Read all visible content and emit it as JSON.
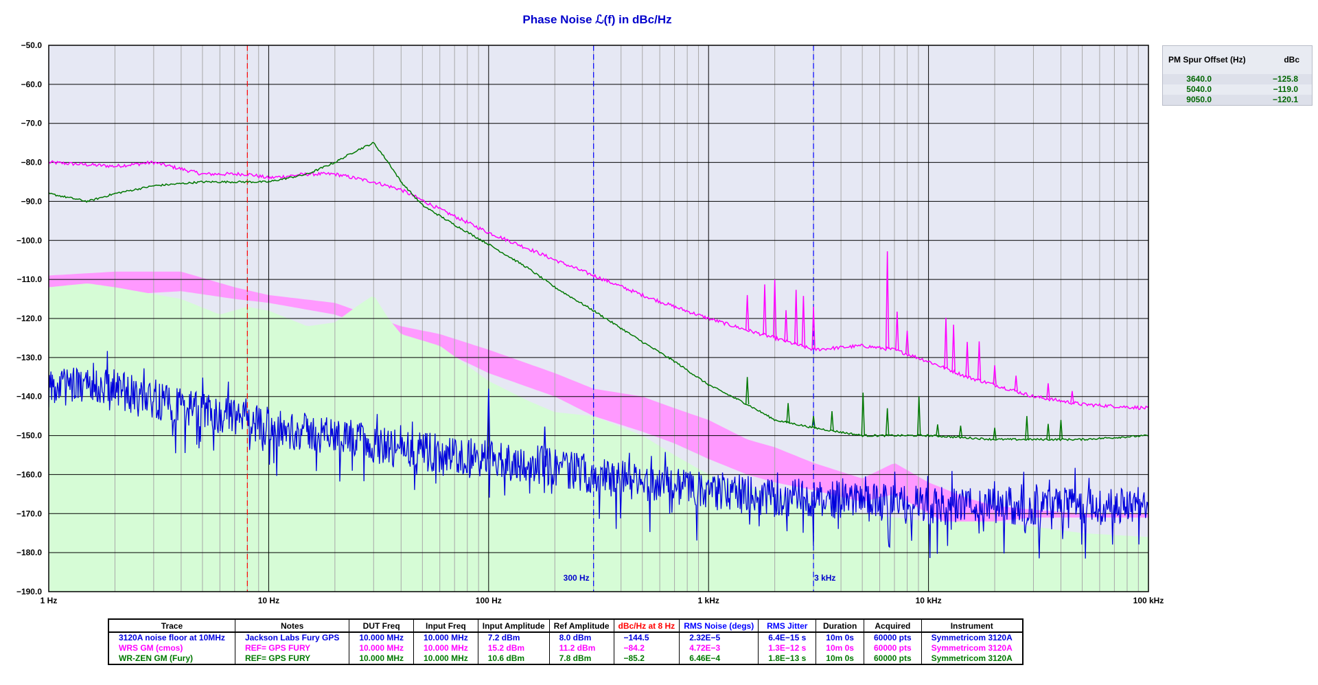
{
  "chart_data": {
    "type": "line",
    "title": "Phase Noise ℒ(f) in dBc/Hz",
    "x_scale": "log",
    "xlim": [
      1,
      100000
    ],
    "ylim": [
      -190,
      -50
    ],
    "x_ticks": [
      {
        "value": 1,
        "label": "1 Hz"
      },
      {
        "value": 10,
        "label": "10 Hz"
      },
      {
        "value": 100,
        "label": "100 Hz"
      },
      {
        "value": 1000,
        "label": "1 kHz"
      },
      {
        "value": 10000,
        "label": "10 kHz"
      },
      {
        "value": 100000,
        "label": "100 kHz"
      }
    ],
    "y_ticks": [
      -50,
      -60,
      -70,
      -80,
      -90,
      -100,
      -110,
      -120,
      -130,
      -140,
      -150,
      -160,
      -170,
      -180,
      -190
    ],
    "y_tick_labels": [
      "−50.0",
      "−60.0",
      "−70.0",
      "−80.0",
      "−90.0",
      "−100.0",
      "−110.0",
      "−120.0",
      "−130.0",
      "−140.0",
      "−150.0",
      "−160.0",
      "−170.0",
      "−180.0",
      "−190.0"
    ],
    "grid": true,
    "markers": [
      {
        "x": 8,
        "color": "#ff0000",
        "label": ""
      },
      {
        "x": 300,
        "color": "#0000ff",
        "label": "300 Hz"
      },
      {
        "x": 3000,
        "color": "#0000ff",
        "label": "3 kHz"
      }
    ],
    "bands": [
      {
        "color": "#ff99ff",
        "upper": [
          [
            1,
            -109
          ],
          [
            2,
            -108
          ],
          [
            4,
            -108
          ],
          [
            7,
            -112
          ],
          [
            10,
            -114
          ],
          [
            20,
            -116
          ],
          [
            40,
            -122
          ],
          [
            60,
            -124
          ],
          [
            100,
            -128
          ],
          [
            200,
            -134
          ],
          [
            300,
            -138
          ],
          [
            500,
            -140
          ],
          [
            700,
            -143
          ],
          [
            1000,
            -146
          ],
          [
            1500,
            -151
          ],
          [
            2000,
            -153
          ],
          [
            3000,
            -157
          ],
          [
            5000,
            -161
          ],
          [
            7000,
            -157
          ],
          [
            10000,
            -162
          ],
          [
            15000,
            -166
          ],
          [
            20000,
            -168
          ],
          [
            30000,
            -169
          ],
          [
            50000,
            -170
          ],
          [
            100000,
            -170
          ]
        ],
        "lower": [
          [
            1,
            -112
          ],
          [
            2,
            -114
          ],
          [
            4,
            -113
          ],
          [
            7,
            -115
          ],
          [
            10,
            -116
          ],
          [
            20,
            -119
          ],
          [
            40,
            -125
          ],
          [
            60,
            -128
          ],
          [
            100,
            -134
          ],
          [
            200,
            -140
          ],
          [
            300,
            -145
          ],
          [
            500,
            -149
          ],
          [
            700,
            -152
          ],
          [
            1000,
            -156
          ],
          [
            1500,
            -160
          ],
          [
            2000,
            -162
          ],
          [
            3000,
            -164
          ],
          [
            5000,
            -167
          ],
          [
            7000,
            -165
          ],
          [
            10000,
            -170
          ],
          [
            15000,
            -175
          ],
          [
            20000,
            -172
          ],
          [
            30000,
            -171
          ],
          [
            50000,
            -171
          ],
          [
            100000,
            -171
          ]
        ]
      },
      {
        "color": "#d6fcd6",
        "upper": [
          [
            1,
            -112
          ],
          [
            1.5,
            -111
          ],
          [
            2,
            -112
          ],
          [
            4,
            -115
          ],
          [
            6,
            -119
          ],
          [
            8,
            -117
          ],
          [
            10,
            -118
          ],
          [
            15,
            -122
          ],
          [
            20,
            -121
          ],
          [
            25,
            -117
          ],
          [
            30,
            -114
          ],
          [
            35,
            -120
          ],
          [
            40,
            -124
          ],
          [
            60,
            -127
          ],
          [
            100,
            -136
          ],
          [
            150,
            -141
          ],
          [
            200,
            -144
          ],
          [
            300,
            -145
          ],
          [
            500,
            -150
          ],
          [
            700,
            -155
          ],
          [
            1000,
            -160
          ],
          [
            2000,
            -165
          ],
          [
            3000,
            -167
          ],
          [
            5000,
            -170
          ],
          [
            10000,
            -172
          ],
          [
            20000,
            -172
          ],
          [
            50000,
            -175
          ],
          [
            100000,
            -176
          ]
        ],
        "lower": [
          [
            1,
            -190
          ],
          [
            100000,
            -190
          ]
        ]
      }
    ],
    "series": [
      {
        "name": "WRS GM (cmos)",
        "color": "#ff00ff",
        "noise": 0.9,
        "points": [
          [
            1,
            -80
          ],
          [
            2,
            -81
          ],
          [
            3,
            -80
          ],
          [
            5,
            -83
          ],
          [
            8,
            -83
          ],
          [
            10,
            -84
          ],
          [
            15,
            -83
          ],
          [
            20,
            -83
          ],
          [
            30,
            -85
          ],
          [
            40,
            -87
          ],
          [
            60,
            -92
          ],
          [
            100,
            -98
          ],
          [
            150,
            -102
          ],
          [
            200,
            -105
          ],
          [
            300,
            -109
          ],
          [
            500,
            -114
          ],
          [
            700,
            -117
          ],
          [
            1000,
            -120
          ],
          [
            1500,
            -123
          ],
          [
            2000,
            -125
          ],
          [
            3000,
            -128
          ],
          [
            5000,
            -127
          ],
          [
            7000,
            -128
          ],
          [
            10000,
            -131
          ],
          [
            15000,
            -135
          ],
          [
            20000,
            -137
          ],
          [
            30000,
            -140
          ],
          [
            50000,
            -142
          ],
          [
            100000,
            -143
          ]
        ],
        "spurs": [
          [
            1500,
            -9
          ],
          [
            1800,
            -13
          ],
          [
            2000,
            -15
          ],
          [
            2250,
            -8
          ],
          [
            2500,
            -14
          ],
          [
            2700,
            -13
          ],
          [
            3000,
            -11
          ],
          [
            6500,
            -25
          ],
          [
            7200,
            -10
          ],
          [
            8000,
            -6
          ],
          [
            12000,
            -13
          ],
          [
            13000,
            -12
          ],
          [
            15000,
            -9
          ],
          [
            17000,
            -10
          ],
          [
            20000,
            -5
          ],
          [
            25000,
            -4
          ],
          [
            35000,
            -4
          ],
          [
            45000,
            -3
          ]
        ]
      },
      {
        "name": "WR-ZEN GM (Fury)",
        "color": "#007700",
        "noise": 0.5,
        "points": [
          [
            1,
            -88
          ],
          [
            1.5,
            -90
          ],
          [
            2,
            -88
          ],
          [
            3,
            -86
          ],
          [
            5,
            -85
          ],
          [
            8,
            -85
          ],
          [
            10,
            -85
          ],
          [
            15,
            -83
          ],
          [
            20,
            -80
          ],
          [
            25,
            -77
          ],
          [
            30,
            -75
          ],
          [
            35,
            -80
          ],
          [
            40,
            -85
          ],
          [
            50,
            -91
          ],
          [
            70,
            -96
          ],
          [
            100,
            -101
          ],
          [
            150,
            -107
          ],
          [
            200,
            -112
          ],
          [
            300,
            -118
          ],
          [
            500,
            -126
          ],
          [
            700,
            -131
          ],
          [
            1000,
            -137
          ],
          [
            1500,
            -142
          ],
          [
            2000,
            -146
          ],
          [
            3000,
            -148
          ],
          [
            5000,
            -150
          ],
          [
            10000,
            -150
          ],
          [
            20000,
            -151
          ],
          [
            50000,
            -151
          ],
          [
            100000,
            -150
          ]
        ],
        "spurs": [
          [
            1500,
            -7
          ],
          [
            2300,
            -5
          ],
          [
            3000,
            -3
          ],
          [
            3640,
            -5
          ],
          [
            5040,
            -11
          ],
          [
            6500,
            -7
          ],
          [
            9050,
            -10
          ],
          [
            11000,
            -3
          ],
          [
            14000,
            -3
          ],
          [
            20000,
            -3
          ],
          [
            28000,
            -6
          ],
          [
            35000,
            -4
          ],
          [
            40000,
            -5
          ]
        ]
      },
      {
        "name": "3120A noise floor at 10MHz",
        "color": "#0000dd",
        "noise": 4.5,
        "points": [
          [
            1,
            -138
          ],
          [
            1.5,
            -137
          ],
          [
            2,
            -138
          ],
          [
            3,
            -141
          ],
          [
            5,
            -144
          ],
          [
            8,
            -146
          ],
          [
            10,
            -148
          ],
          [
            20,
            -150
          ],
          [
            30,
            -152
          ],
          [
            50,
            -154
          ],
          [
            100,
            -156
          ],
          [
            200,
            -158
          ],
          [
            300,
            -160
          ],
          [
            500,
            -162
          ],
          [
            1000,
            -164
          ],
          [
            2000,
            -166
          ],
          [
            3000,
            -166
          ],
          [
            5000,
            -167
          ],
          [
            10000,
            -168
          ],
          [
            20000,
            -168
          ],
          [
            50000,
            -168
          ],
          [
            100000,
            -168
          ]
        ],
        "spurs": [
          [
            100,
            -18
          ],
          [
            180,
            -10
          ]
        ]
      }
    ]
  },
  "spur_table": {
    "header_offset": "PM Spur Offset (Hz)",
    "header_dbc": "dBc",
    "rows": [
      {
        "offset": "3640.0",
        "dbc": "−125.8"
      },
      {
        "offset": "5040.0",
        "dbc": "−119.0"
      },
      {
        "offset": "9050.0",
        "dbc": "−120.1"
      }
    ]
  },
  "trace_table": {
    "headers": [
      "Trace",
      "Notes",
      "DUT Freq",
      "Input Freq",
      "Input Amplitude",
      "Ref Amplitude",
      "dBc/Hz at 8 Hz",
      "RMS Noise (degs)",
      "RMS Jitter",
      "Duration",
      "Acquired",
      "Instrument"
    ],
    "rows": [
      {
        "color": "#0000dd",
        "cells": [
          "3120A noise floor at 10MHz",
          "Jackson Labs Fury GPS",
          "10.000 MHz",
          "10.000 MHz",
          "7.2 dBm",
          "8.0 dBm",
          "−144.5",
          "2.32E−5",
          "6.4E−15 s",
          "10m 0s",
          "60000 pts",
          "Symmetricom 3120A"
        ]
      },
      {
        "color": "#ff00ff",
        "cells": [
          "WRS GM (cmos)",
          "REF= GPS FURY",
          "10.000 MHz",
          "10.000 MHz",
          "15.2 dBm",
          "11.2 dBm",
          "−84.2",
          "4.72E−3",
          "1.3E−12 s",
          "10m 0s",
          "60000 pts",
          "Symmetricom 3120A"
        ]
      },
      {
        "color": "#007700",
        "cells": [
          "WR-ZEN GM (Fury)",
          "REF= GPS FURY",
          "10.000 MHz",
          "10.000 MHz",
          "10.6 dBm",
          "7.8 dBm",
          "−85.2",
          "6.46E−4",
          "1.8E−13 s",
          "10m 0s",
          "60000 pts",
          "Symmetricom 3120A"
        ]
      }
    ]
  }
}
